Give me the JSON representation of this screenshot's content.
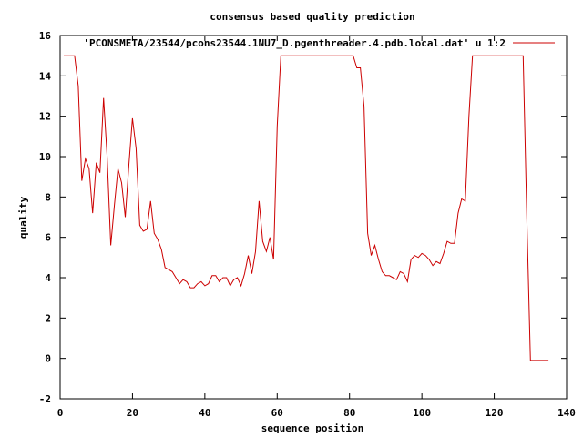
{
  "chart_data": {
    "type": "line",
    "title": "consensus based quality prediction",
    "xlabel": "sequence position",
    "ylabel": "quality",
    "xlim": [
      0,
      140
    ],
    "ylim": [
      -2,
      16
    ],
    "x_ticks": [
      0,
      20,
      40,
      60,
      80,
      100,
      120,
      140
    ],
    "y_ticks": [
      -2,
      0,
      2,
      4,
      6,
      8,
      10,
      12,
      14,
      16
    ],
    "grid": false,
    "legend_position": "top-right",
    "series": [
      {
        "name": "'PCONSMETA/23544/pcons23544.1NU7_D.pgenthreader.4.pdb.local.dat' u 1:2",
        "color": "#cc0000",
        "points": [
          [
            1,
            15.0
          ],
          [
            2,
            15.0
          ],
          [
            3,
            15.0
          ],
          [
            4,
            15.0
          ],
          [
            5,
            13.5
          ],
          [
            6,
            8.8
          ],
          [
            7,
            9.9
          ],
          [
            8,
            9.4
          ],
          [
            9,
            7.2
          ],
          [
            10,
            9.7
          ],
          [
            11,
            9.2
          ],
          [
            12,
            12.9
          ],
          [
            13,
            10.0
          ],
          [
            14,
            5.6
          ],
          [
            15,
            7.6
          ],
          [
            16,
            9.4
          ],
          [
            17,
            8.7
          ],
          [
            18,
            7.0
          ],
          [
            19,
            9.6
          ],
          [
            20,
            11.9
          ],
          [
            21,
            10.4
          ],
          [
            22,
            6.6
          ],
          [
            23,
            6.3
          ],
          [
            24,
            6.4
          ],
          [
            25,
            7.8
          ],
          [
            26,
            6.2
          ],
          [
            27,
            5.9
          ],
          [
            28,
            5.4
          ],
          [
            29,
            4.5
          ],
          [
            30,
            4.4
          ],
          [
            31,
            4.3
          ],
          [
            32,
            4.0
          ],
          [
            33,
            3.7
          ],
          [
            34,
            3.9
          ],
          [
            35,
            3.8
          ],
          [
            36,
            3.5
          ],
          [
            37,
            3.5
          ],
          [
            38,
            3.7
          ],
          [
            39,
            3.8
          ],
          [
            40,
            3.6
          ],
          [
            41,
            3.7
          ],
          [
            42,
            4.1
          ],
          [
            43,
            4.1
          ],
          [
            44,
            3.8
          ],
          [
            45,
            4.0
          ],
          [
            46,
            4.0
          ],
          [
            47,
            3.6
          ],
          [
            48,
            3.9
          ],
          [
            49,
            4.0
          ],
          [
            50,
            3.6
          ],
          [
            51,
            4.2
          ],
          [
            52,
            5.1
          ],
          [
            53,
            4.2
          ],
          [
            54,
            5.3
          ],
          [
            55,
            7.8
          ],
          [
            56,
            5.8
          ],
          [
            57,
            5.3
          ],
          [
            58,
            6.0
          ],
          [
            59,
            4.9
          ],
          [
            60,
            11.5
          ],
          [
            61,
            15.0
          ],
          [
            62,
            15.0
          ],
          [
            63,
            15.0
          ],
          [
            64,
            15.0
          ],
          [
            65,
            15.0
          ],
          [
            66,
            15.0
          ],
          [
            67,
            15.0
          ],
          [
            68,
            15.0
          ],
          [
            69,
            15.0
          ],
          [
            70,
            15.0
          ],
          [
            71,
            15.0
          ],
          [
            72,
            15.0
          ],
          [
            73,
            15.0
          ],
          [
            74,
            15.0
          ],
          [
            75,
            15.0
          ],
          [
            76,
            15.0
          ],
          [
            77,
            15.0
          ],
          [
            78,
            15.0
          ],
          [
            79,
            15.0
          ],
          [
            80,
            15.0
          ],
          [
            81,
            15.0
          ],
          [
            82,
            14.4
          ],
          [
            83,
            14.4
          ],
          [
            84,
            12.5
          ],
          [
            85,
            6.2
          ],
          [
            86,
            5.1
          ],
          [
            87,
            5.6
          ],
          [
            88,
            4.9
          ],
          [
            89,
            4.3
          ],
          [
            90,
            4.1
          ],
          [
            91,
            4.1
          ],
          [
            92,
            4.0
          ],
          [
            93,
            3.9
          ],
          [
            94,
            4.3
          ],
          [
            95,
            4.2
          ],
          [
            96,
            3.8
          ],
          [
            97,
            4.9
          ],
          [
            98,
            5.1
          ],
          [
            99,
            5.0
          ],
          [
            100,
            5.2
          ],
          [
            101,
            5.1
          ],
          [
            102,
            4.9
          ],
          [
            103,
            4.6
          ],
          [
            104,
            4.8
          ],
          [
            105,
            4.7
          ],
          [
            106,
            5.2
          ],
          [
            107,
            5.8
          ],
          [
            108,
            5.7
          ],
          [
            109,
            5.7
          ],
          [
            110,
            7.2
          ],
          [
            111,
            7.9
          ],
          [
            112,
            7.8
          ],
          [
            113,
            12.0
          ],
          [
            114,
            15.0
          ],
          [
            115,
            15.0
          ],
          [
            116,
            15.0
          ],
          [
            117,
            15.0
          ],
          [
            118,
            15.0
          ],
          [
            119,
            15.0
          ],
          [
            120,
            15.0
          ],
          [
            121,
            15.0
          ],
          [
            122,
            15.0
          ],
          [
            123,
            15.0
          ],
          [
            124,
            15.0
          ],
          [
            125,
            15.0
          ],
          [
            126,
            15.0
          ],
          [
            127,
            15.0
          ],
          [
            128,
            15.0
          ],
          [
            129,
            7.0
          ],
          [
            130,
            -0.1
          ],
          [
            131,
            -0.1
          ],
          [
            132,
            -0.1
          ],
          [
            133,
            -0.1
          ],
          [
            134,
            -0.1
          ],
          [
            135,
            -0.1
          ]
        ]
      }
    ]
  }
}
